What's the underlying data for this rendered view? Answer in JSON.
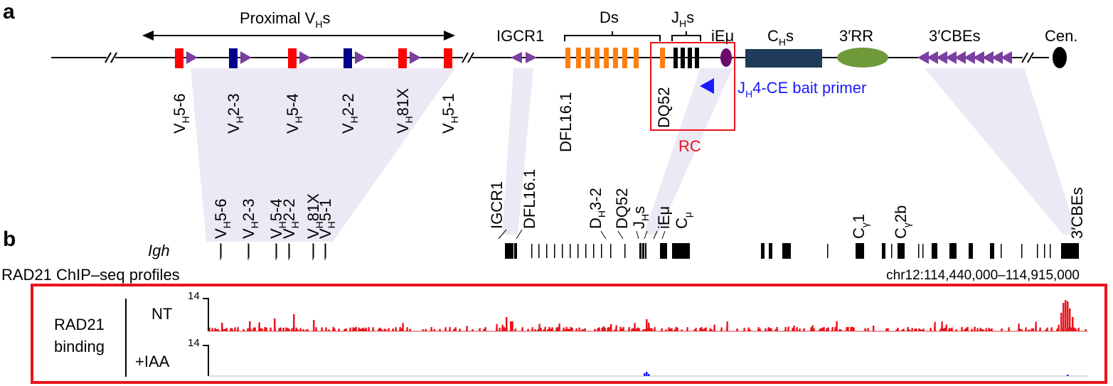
{
  "panel_a": {
    "label": "a",
    "proximal_vh_label": "Proximal V",
    "proximal_vh_sub": "H",
    "proximal_vh_suffix": "s",
    "igcr1": "IGCR1",
    "ds": "Ds",
    "jhs": {
      "main": "J",
      "sub": "H",
      "suffix": "s"
    },
    "iemu": "iEμ",
    "chs": {
      "main": "C",
      "sub": "H",
      "suffix": "s"
    },
    "rr3": "3′RR",
    "cbes3": "3′CBEs",
    "cen": "Cen.",
    "vh_genes": [
      {
        "pre": "V",
        "sub": "H",
        "post": "5-6",
        "color": "#ff0000"
      },
      {
        "pre": "V",
        "sub": "H",
        "post": "2-3",
        "color": "#00008b"
      },
      {
        "pre": "V",
        "sub": "H",
        "post": "5-4",
        "color": "#ff0000"
      },
      {
        "pre": "V",
        "sub": "H",
        "post": "2-2",
        "color": "#00008b"
      },
      {
        "pre": "V",
        "sub": "H",
        "post": "81X",
        "color": "#ff0000"
      },
      {
        "pre": "V",
        "sub": "H",
        "post": "5-1",
        "color": "#ff0000"
      }
    ],
    "dfl161": "DFL16.1",
    "dq52": "DQ52",
    "bait_primer": {
      "pre": "J",
      "sub": "H",
      "post": "4-CE bait primer"
    },
    "rc": "RC",
    "colors": {
      "vh_red": "#ff0000",
      "vh_blue": "#00008b",
      "cbe_purple": "#7b3fa0",
      "ds_orange": "#ff7f0e",
      "iemu_purple": "#6a0a6a",
      "ch_navy": "#1f3a5a",
      "rr_green": "#6e9a3a",
      "rc_box": "#e8141b",
      "primer_blue": "#1a1aff",
      "shade": "#ebe9f4"
    }
  },
  "panel_b": {
    "label": "b",
    "igh": "Igh",
    "gene_labels": {
      "vh56": {
        "pre": "V",
        "sub": "H",
        "post": "5-6"
      },
      "vh23": {
        "pre": "V",
        "sub": "H",
        "post": "2-3"
      },
      "vh54": {
        "pre": "V",
        "sub": "H",
        "post": "5-4"
      },
      "vh22": {
        "pre": "V",
        "sub": "H",
        "post": "2-2"
      },
      "vh81x": {
        "pre": "V",
        "sub": "H",
        "post": "81X"
      },
      "vh51": {
        "pre": "V",
        "sub": "H",
        "post": "5-1"
      },
      "igcr1": "IGCR1",
      "dfl161": "DFL16.1",
      "dh32": {
        "pre": "D",
        "sub": "H",
        "post": "3-2"
      },
      "dq52": "DQ52",
      "jhs": {
        "pre": "J",
        "sub": "H",
        "post": "s"
      },
      "iemu": "iEμ",
      "cmu": {
        "pre": "C",
        "sub": "μ",
        "post": ""
      },
      "cg1": {
        "pre": "C",
        "sub": "γ",
        "post": "1"
      },
      "cg2b": {
        "pre": "C",
        "sub": "γ",
        "post": "2b"
      },
      "cbes3": "3′CBEs"
    },
    "track_title": "RAD21 ChIP–seq profiles",
    "coords": "chr12:114,440,000–114,915,000",
    "group_label_1": "RAD21",
    "group_label_2": "binding",
    "tracks": [
      {
        "name": "NT",
        "ymax": "14",
        "color": "#e8141b"
      },
      {
        "name": "+IAA",
        "ymax": "14",
        "color": "#1a1aff"
      }
    ]
  }
}
